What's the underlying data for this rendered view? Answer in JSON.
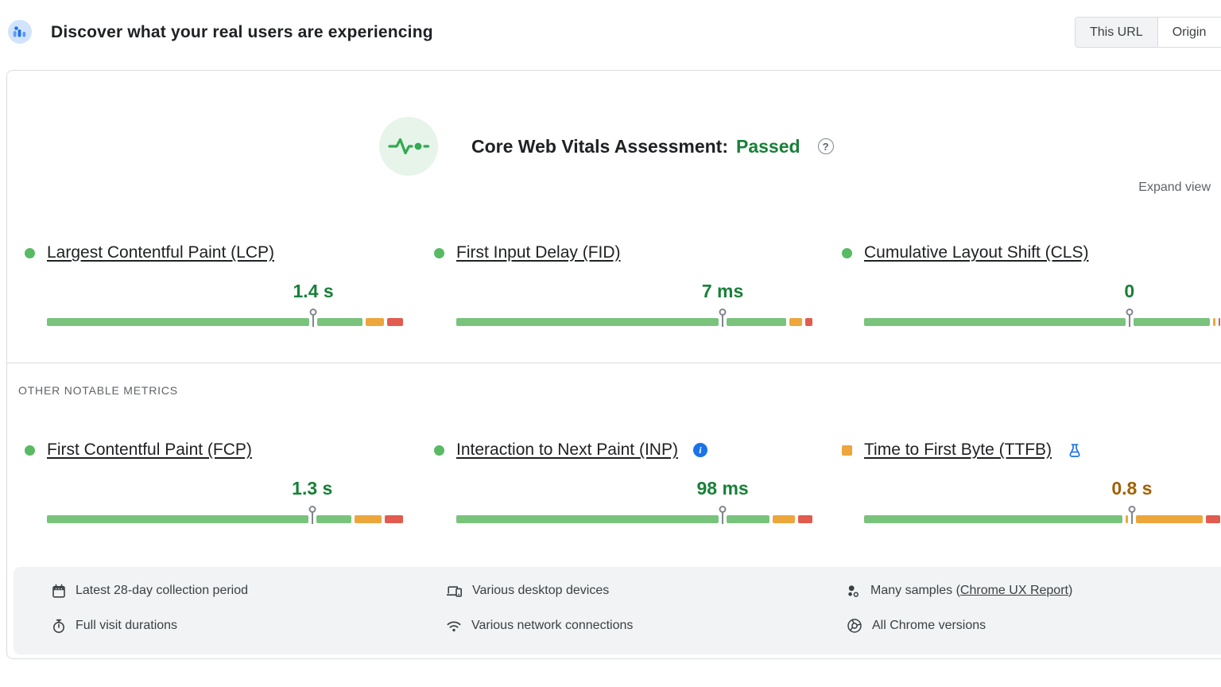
{
  "header": {
    "title": "Discover what your real users are experiencing",
    "toggle": {
      "options": [
        "This URL",
        "Origin"
      ],
      "selected": "This URL"
    }
  },
  "assessment": {
    "label": "Core Web Vitals Assessment:",
    "status": "Passed",
    "status_color": "#188038",
    "expand_label": "Expand view"
  },
  "sections": {
    "other_metrics_label": "OTHER NOTABLE METRICS"
  },
  "colors": {
    "bar_good": "#79c37d",
    "bar_needs_improvement": "#eda63c",
    "bar_poor": "#e15b4e",
    "good_dot": "#58ba63",
    "value_good": "#188038",
    "value_warn": "#a26104",
    "accent_blue": "#1a73e8"
  },
  "metrics": {
    "core": [
      {
        "id": "lcp",
        "label": "Largest Contentful Paint (LCP)",
        "value": "1.4 s",
        "indicator": "circle",
        "indicator_color": "#58ba63",
        "value_color": "#188038",
        "marker_pct": 74.8,
        "dist": {
          "good": 89,
          "ni": 6,
          "poor": 5
        },
        "icon": null
      },
      {
        "id": "fid",
        "label": "First Input Delay (FID)",
        "value": "7 ms",
        "indicator": "circle",
        "indicator_color": "#58ba63",
        "value_color": "#188038",
        "marker_pct": 74.8,
        "dist": {
          "good": 93,
          "ni": 4.5,
          "poor": 2.5
        },
        "icon": null
      },
      {
        "id": "cls",
        "label": "Cumulative Layout Shift (CLS)",
        "value": "0",
        "indicator": "circle",
        "indicator_color": "#58ba63",
        "value_color": "#188038",
        "marker_pct": 74.5,
        "dist": {
          "good": 97.5,
          "ni": 1.5,
          "poor": 1
        },
        "icon": null
      },
      {
        "id": "fcp",
        "label": "First Contentful Paint (FCP)",
        "value": "1.3 s",
        "indicator": "circle",
        "indicator_color": "#58ba63",
        "value_color": "#188038",
        "marker_pct": 74.5,
        "dist": {
          "good": 86,
          "ni": 8.5,
          "poor": 5.5
        },
        "icon": null
      },
      {
        "id": "inp",
        "label": "Interaction to Next Paint (INP)",
        "value": "98 ms",
        "indicator": "circle",
        "indicator_color": "#58ba63",
        "value_color": "#188038",
        "marker_pct": 74.8,
        "dist": {
          "good": 88.5,
          "ni": 7,
          "poor": 4.5
        },
        "icon": "info"
      },
      {
        "id": "ttfb",
        "label": "Time to First Byte (TTFB)",
        "value": "0.8 s",
        "indicator": "square",
        "indicator_color": "#eda63c",
        "value_color": "#a26104",
        "marker_pct": 75.2,
        "dist": {
          "good": 73,
          "ni": 22.5,
          "poor": 4.5
        },
        "icon": "flask"
      }
    ]
  },
  "footer": {
    "items": [
      {
        "name": "collection-period",
        "icon": "calendar-icon",
        "text": "Latest 28-day collection period",
        "col": 1,
        "row": 1
      },
      {
        "name": "visit-durations",
        "icon": "stopwatch-icon",
        "text": "Full visit durations",
        "col": 1,
        "row": 2
      },
      {
        "name": "desktop-devices",
        "icon": "devices-icon",
        "text": "Various desktop devices",
        "col": 2,
        "row": 1
      },
      {
        "name": "network-connections",
        "icon": "network-icon",
        "text": "Various network connections",
        "col": 2,
        "row": 2
      },
      {
        "name": "samples",
        "icon": "samples-icon",
        "text_prefix": "Many samples (",
        "link_text": "Chrome UX Report",
        "text_suffix": ")",
        "col": 3,
        "row": 1
      },
      {
        "name": "chrome-versions",
        "icon": "chrome-icon",
        "text": "All Chrome versions",
        "col": 3,
        "row": 2
      }
    ]
  }
}
